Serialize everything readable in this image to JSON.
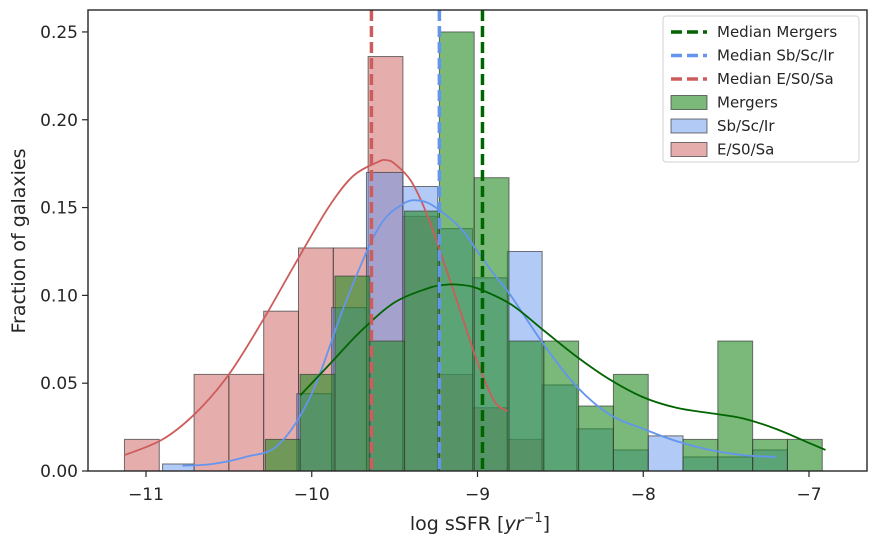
{
  "chart_data": {
    "type": "bar",
    "title": "",
    "xlabel_prefix": "log sSFR [",
    "xlabel_math": "yr",
    "xlabel_exp": "−1",
    "xlabel_suffix": "]",
    "ylabel": "Fraction of galaxies",
    "xlim": [
      -11.35,
      -6.65
    ],
    "ylim": [
      0,
      0.2625
    ],
    "xticks": [
      -11,
      -10,
      -9,
      -8,
      -7
    ],
    "xtick_labels": [
      "−11",
      "−10",
      "−9",
      "−8",
      "−7"
    ],
    "yticks": [
      0.0,
      0.05,
      0.1,
      0.15,
      0.2,
      0.25
    ],
    "ytick_labels": [
      "0.00",
      "0.05",
      "0.10",
      "0.15",
      "0.20",
      "0.25"
    ],
    "legend_position": "top-right",
    "legend": [
      {
        "label": "Median Mergers",
        "kind": "line",
        "color": "#006400"
      },
      {
        "label": "Median Sb/Sc/Ir",
        "kind": "line",
        "color": "#6495ED"
      },
      {
        "label": "Median E/S0/Sa",
        "kind": "line",
        "color": "#CD5C5C"
      },
      {
        "label": "Mergers",
        "kind": "patch",
        "color": "#228B22"
      },
      {
        "label": "Sb/Sc/Ir",
        "kind": "patch",
        "color": "#6495ED"
      },
      {
        "label": "E/S0/Sa",
        "kind": "patch",
        "color": "#CD5C5C"
      }
    ],
    "series": [
      {
        "name": "E/S0/Sa",
        "color": "#CD5C5C",
        "alpha": 0.5,
        "bins": [
          {
            "x0": -11.13,
            "x1": -10.92,
            "value": 0.018
          },
          {
            "x0": -10.92,
            "x1": -10.71,
            "value": 0.0
          },
          {
            "x0": -10.71,
            "x1": -10.5,
            "value": 0.055
          },
          {
            "x0": -10.5,
            "x1": -10.29,
            "value": 0.055
          },
          {
            "x0": -10.29,
            "x1": -10.08,
            "value": 0.091
          },
          {
            "x0": -10.08,
            "x1": -9.87,
            "value": 0.127
          },
          {
            "x0": -9.87,
            "x1": -9.66,
            "value": 0.127
          },
          {
            "x0": -9.66,
            "x1": -9.45,
            "value": 0.236
          },
          {
            "x0": -9.45,
            "x1": -9.24,
            "value": 0.145
          },
          {
            "x0": -9.24,
            "x1": -9.03,
            "value": 0.055
          },
          {
            "x0": -9.03,
            "x1": -8.82,
            "value": 0.036
          },
          {
            "x0": -8.82,
            "x1": -8.61,
            "value": 0.018
          }
        ],
        "kde": {
          "x": [
            -11.13,
            -10.9,
            -10.7,
            -10.5,
            -10.3,
            -10.1,
            -9.9,
            -9.75,
            -9.6,
            -9.55,
            -9.5,
            -9.4,
            -9.3,
            -9.2,
            -9.1,
            -9.0,
            -8.9,
            -8.82
          ],
          "y": [
            0.009,
            0.018,
            0.033,
            0.055,
            0.085,
            0.118,
            0.15,
            0.168,
            0.176,
            0.177,
            0.175,
            0.165,
            0.145,
            0.118,
            0.09,
            0.062,
            0.04,
            0.034
          ]
        },
        "median": -9.64
      },
      {
        "name": "Sb/Sc/Ir",
        "color": "#6495ED",
        "alpha": 0.5,
        "bins": [
          {
            "x0": -10.9,
            "x1": -10.71,
            "value": 0.004
          },
          {
            "x0": -10.71,
            "x1": -10.09,
            "value": 0.0
          },
          {
            "x0": -10.09,
            "x1": -9.88,
            "value": 0.044
          },
          {
            "x0": -9.88,
            "x1": -9.67,
            "value": 0.093
          },
          {
            "x0": -9.67,
            "x1": -9.45,
            "value": 0.17
          },
          {
            "x0": -9.45,
            "x1": -9.24,
            "value": 0.162
          },
          {
            "x0": -9.24,
            "x1": -9.03,
            "value": 0.138
          },
          {
            "x0": -9.03,
            "x1": -8.82,
            "value": 0.11
          },
          {
            "x0": -8.82,
            "x1": -8.61,
            "value": 0.125
          },
          {
            "x0": -8.61,
            "x1": -8.4,
            "value": 0.049
          },
          {
            "x0": -8.4,
            "x1": -8.18,
            "value": 0.024
          },
          {
            "x0": -8.18,
            "x1": -7.97,
            "value": 0.012
          },
          {
            "x0": -7.97,
            "x1": -7.76,
            "value": 0.02
          },
          {
            "x0": -7.76,
            "x1": -7.55,
            "value": 0.008
          },
          {
            "x0": -7.55,
            "x1": -7.34,
            "value": 0.008
          },
          {
            "x0": -7.34,
            "x1": -7.13,
            "value": 0.012
          }
        ],
        "kde": {
          "x": [
            -10.78,
            -10.6,
            -10.4,
            -10.2,
            -10.0,
            -9.8,
            -9.6,
            -9.45,
            -9.35,
            -9.25,
            -9.1,
            -9.0,
            -8.9,
            -8.8,
            -8.6,
            -8.4,
            -8.2,
            -8.0,
            -7.8,
            -7.6,
            -7.4,
            -7.2
          ],
          "y": [
            0.003,
            0.004,
            0.008,
            0.015,
            0.044,
            0.095,
            0.138,
            0.152,
            0.154,
            0.15,
            0.138,
            0.125,
            0.112,
            0.1,
            0.072,
            0.048,
            0.032,
            0.024,
            0.017,
            0.012,
            0.009,
            0.008
          ]
        },
        "median": -9.23
      },
      {
        "name": "Mergers",
        "color": "#228B22",
        "alpha": 0.6,
        "bins": [
          {
            "x0": -10.28,
            "x1": -10.07,
            "value": 0.018
          },
          {
            "x0": -10.07,
            "x1": -9.86,
            "value": 0.055
          },
          {
            "x0": -9.86,
            "x1": -9.65,
            "value": 0.111
          },
          {
            "x0": -9.65,
            "x1": -9.44,
            "value": 0.074
          },
          {
            "x0": -9.44,
            "x1": -9.23,
            "value": 0.148
          },
          {
            "x0": -9.23,
            "x1": -9.02,
            "value": 0.25
          },
          {
            "x0": -9.02,
            "x1": -8.81,
            "value": 0.167
          },
          {
            "x0": -8.81,
            "x1": -8.6,
            "value": 0.074
          },
          {
            "x0": -8.6,
            "x1": -8.39,
            "value": 0.074
          },
          {
            "x0": -8.39,
            "x1": -8.18,
            "value": 0.037
          },
          {
            "x0": -8.18,
            "x1": -7.97,
            "value": 0.055
          },
          {
            "x0": -7.97,
            "x1": -7.76,
            "value": 0.0
          },
          {
            "x0": -7.76,
            "x1": -7.55,
            "value": 0.018
          },
          {
            "x0": -7.55,
            "x1": -7.34,
            "value": 0.074
          },
          {
            "x0": -7.34,
            "x1": -7.13,
            "value": 0.018
          },
          {
            "x0": -7.13,
            "x1": -6.92,
            "value": 0.018
          }
        ],
        "kde": {
          "x": [
            -10.07,
            -9.9,
            -9.7,
            -9.5,
            -9.3,
            -9.2,
            -9.1,
            -9.0,
            -8.8,
            -8.6,
            -8.4,
            -8.2,
            -8.0,
            -7.8,
            -7.6,
            -7.4,
            -7.2,
            -7.0,
            -6.9
          ],
          "y": [
            0.043,
            0.06,
            0.08,
            0.096,
            0.104,
            0.106,
            0.106,
            0.104,
            0.095,
            0.08,
            0.065,
            0.052,
            0.042,
            0.036,
            0.033,
            0.03,
            0.024,
            0.016,
            0.012
          ]
        },
        "median": -8.97
      }
    ],
    "median_colors": {
      "Mergers": "#006400",
      "Sb/Sc/Ir": "#6495ED",
      "E/S0/Sa": "#CD5C5C"
    },
    "kde_colors": {
      "Mergers": "#006400",
      "Sb/Sc/Ir": "#6495ED",
      "E/S0/Sa": "#CD5C5C"
    }
  }
}
